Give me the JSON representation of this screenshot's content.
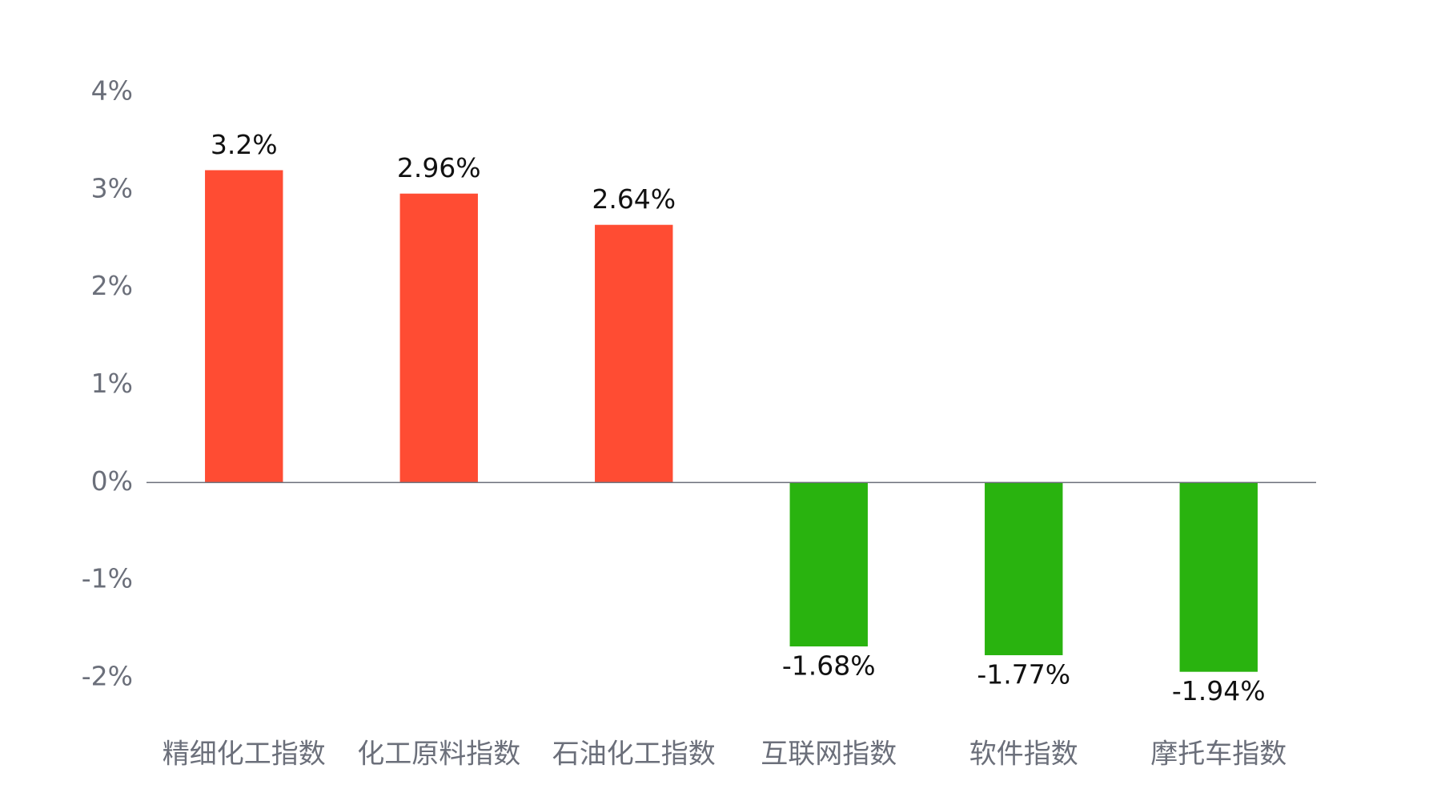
{
  "chart_data": {
    "type": "bar",
    "categories": [
      "精细化工指数",
      "化工原料指数",
      "石油化工指数",
      "互联网指数",
      "软件指数",
      "摩托车指数"
    ],
    "values": [
      3.2,
      2.96,
      2.64,
      -1.68,
      -1.77,
      -1.94
    ],
    "value_labels": [
      "3.2%",
      "2.96%",
      "2.64%",
      "-1.68%",
      "-1.77%",
      "-1.94%"
    ],
    "colors": [
      "#ff4c33",
      "#ff4c33",
      "#ff4c33",
      "#29b30f",
      "#29b30f",
      "#29b30f"
    ],
    "ylim": [
      -2,
      4
    ],
    "yticks": [
      {
        "value": -2,
        "label": "-2%"
      },
      {
        "value": -1,
        "label": "-1%"
      },
      {
        "value": 0,
        "label": "0%"
      },
      {
        "value": 1,
        "label": "1%"
      },
      {
        "value": 2,
        "label": "2%"
      },
      {
        "value": 3,
        "label": "3%"
      },
      {
        "value": 4,
        "label": "4%"
      }
    ],
    "grid": false
  }
}
